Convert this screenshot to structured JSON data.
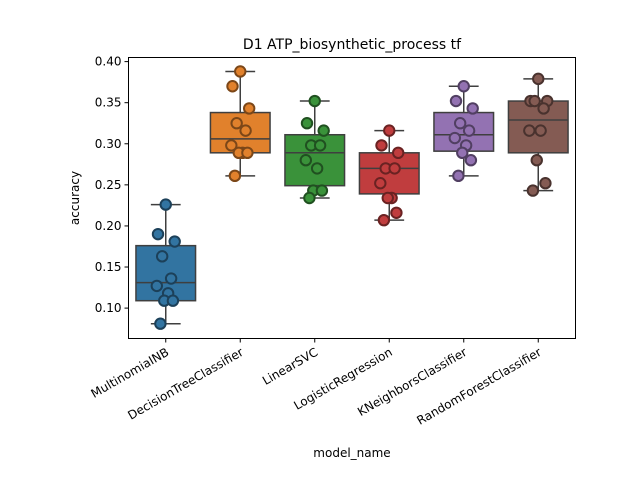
{
  "chart_data": {
    "type": "box",
    "title": "D1 ATP_biosynthetic_process tf",
    "xlabel": "model_name",
    "ylabel": "accuracy",
    "ylim": [
      0.063,
      0.405
    ],
    "yticks": [
      0.1,
      0.15,
      0.2,
      0.25,
      0.3,
      0.35,
      0.4
    ],
    "ytick_labels": [
      "0.10",
      "0.15",
      "0.20",
      "0.25",
      "0.30",
      "0.35",
      "0.40"
    ],
    "categories": [
      "MultinomiaINB",
      "DecisionTreeClassifier",
      "LinearSVC",
      "LogisticRegression",
      "KNeighborsClassifier",
      "RandomForestClassifier"
    ],
    "colors": [
      "#3274a1",
      "#e1812c",
      "#3a923a",
      "#c03d3e",
      "#9372b2",
      "#845b53"
    ],
    "boxes": [
      {
        "q1": 0.109,
        "median": 0.131,
        "q3": 0.176,
        "whisker_low": 0.081,
        "whisker_high": 0.226
      },
      {
        "q1": 0.289,
        "median": 0.306,
        "q3": 0.338,
        "whisker_low": 0.261,
        "whisker_high": 0.388
      },
      {
        "q1": 0.249,
        "median": 0.289,
        "q3": 0.311,
        "whisker_low": 0.234,
        "whisker_high": 0.352
      },
      {
        "q1": 0.239,
        "median": 0.27,
        "q3": 0.289,
        "whisker_low": 0.207,
        "whisker_high": 0.316
      },
      {
        "q1": 0.291,
        "median": 0.311,
        "q3": 0.338,
        "whisker_low": 0.261,
        "whisker_high": 0.37
      },
      {
        "q1": 0.289,
        "median": 0.329,
        "q3": 0.352,
        "whisker_low": 0.243,
        "whisker_high": 0.379
      }
    ],
    "points": [
      [
        0.226,
        0.19,
        0.181,
        0.163,
        0.136,
        0.127,
        0.118,
        0.109,
        0.109,
        0.081
      ],
      [
        0.388,
        0.37,
        0.343,
        0.325,
        0.316,
        0.298,
        0.289,
        0.289,
        0.289,
        0.261
      ],
      [
        0.352,
        0.325,
        0.316,
        0.298,
        0.298,
        0.28,
        0.27,
        0.243,
        0.243,
        0.234
      ],
      [
        0.316,
        0.298,
        0.289,
        0.27,
        0.27,
        0.252,
        0.234,
        0.234,
        0.216,
        0.207
      ],
      [
        0.37,
        0.352,
        0.343,
        0.325,
        0.316,
        0.307,
        0.298,
        0.289,
        0.28,
        0.261
      ],
      [
        0.379,
        0.352,
        0.352,
        0.352,
        0.343,
        0.316,
        0.316,
        0.28,
        0.252,
        0.243
      ]
    ]
  }
}
